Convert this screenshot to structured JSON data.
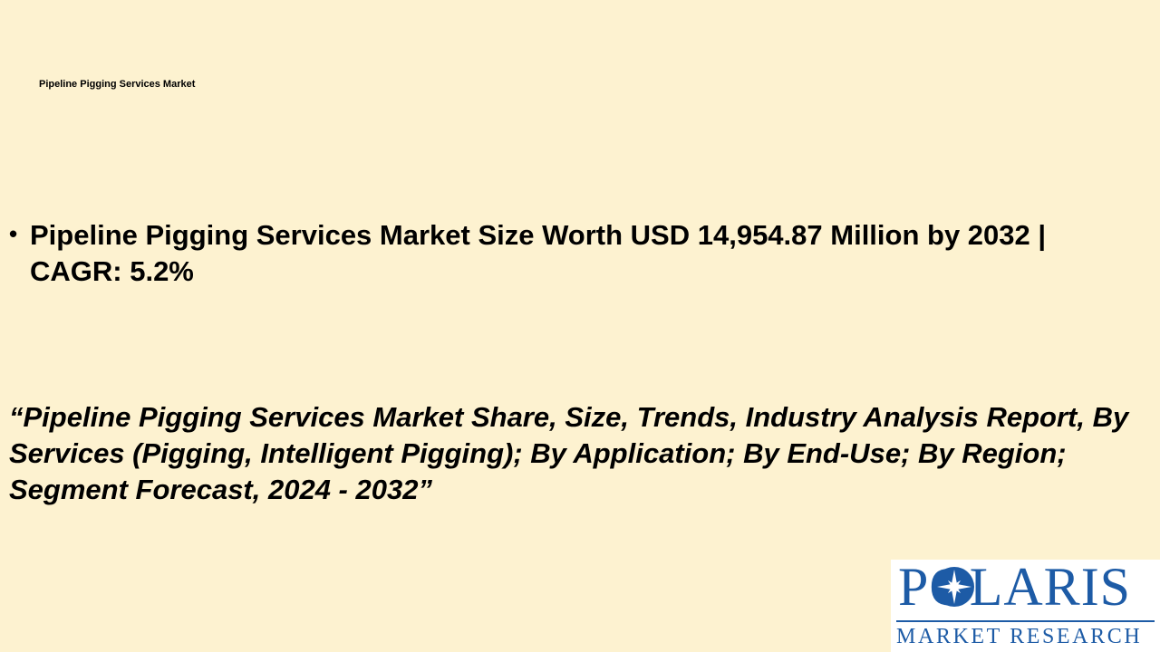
{
  "header": {
    "title": "Pipeline Pigging Services Market"
  },
  "bullets": [
    "Pipeline Pigging Services Market Size Worth USD 14,954.87 Million by 2032 | CAGR: 5.2%"
  ],
  "report_title": "“Pipeline Pigging Services Market Share, Size, Trends, Industry Analysis Report, By Services (Pigging, Intelligent Pigging); By Application; By End-Use; By Region; Segment Forecast, 2024 - 2032”",
  "logo": {
    "name": "POLARIS",
    "tagline": "MARKET RESEARCH"
  }
}
